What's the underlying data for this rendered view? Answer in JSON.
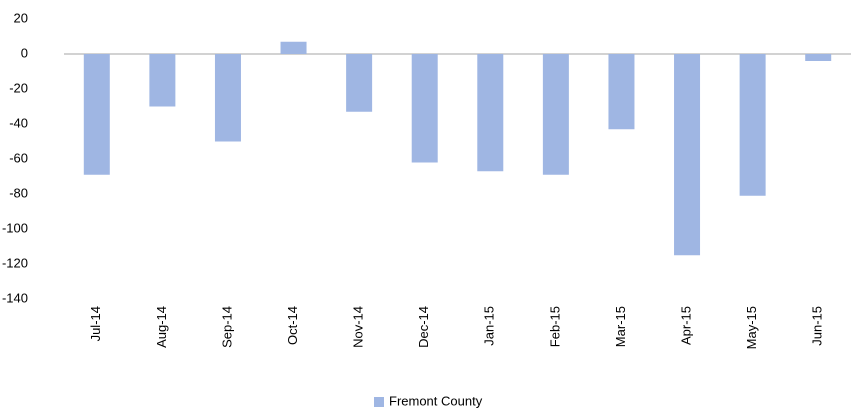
{
  "chart_data": {
    "type": "bar",
    "categories": [
      "Jul-14",
      "Aug-14",
      "Sep-14",
      "Oct-14",
      "Nov-14",
      "Dec-14",
      "Jan-15",
      "Feb-15",
      "Mar-15",
      "Apr-15",
      "May-15",
      "Jun-15"
    ],
    "series": [
      {
        "name": "Fremont County",
        "color": "#9fb6e3",
        "values": [
          -69,
          -30,
          -50,
          7,
          -33,
          -62,
          -67,
          -69,
          -43,
          -115,
          -81,
          -4
        ]
      }
    ],
    "ylim": [
      -140,
      20
    ],
    "yticks": [
      -140,
      -120,
      -100,
      -80,
      -60,
      -40,
      -20,
      0,
      20
    ],
    "legend": "bottom"
  }
}
